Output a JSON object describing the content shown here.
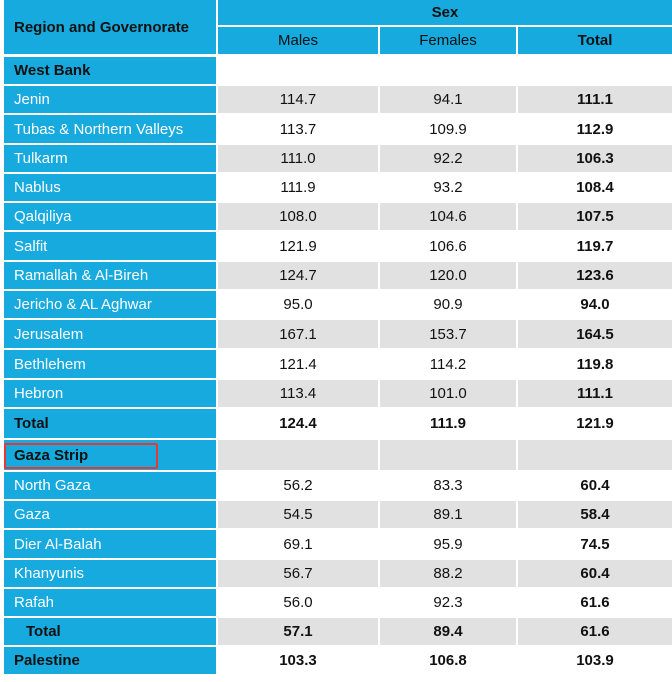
{
  "header": {
    "region_label": "Region and Governorate",
    "sex_label": "Sex",
    "males_label": "Males",
    "females_label": "Females",
    "total_label": "Total"
  },
  "rows": [
    {
      "label": "West Bank",
      "kind": "section",
      "males": "",
      "females": "",
      "total": ""
    },
    {
      "label": "Jenin",
      "kind": "data",
      "males": "114.7",
      "females": "94.1",
      "total": "111.1"
    },
    {
      "label": "Tubas & Northern Valleys",
      "kind": "data",
      "males": "113.7",
      "females": "109.9",
      "total": "112.9"
    },
    {
      "label": "Tulkarm",
      "kind": "data",
      "males": "111.0",
      "females": "92.2",
      "total": "106.3"
    },
    {
      "label": "Nablus",
      "kind": "data",
      "males": "111.9",
      "females": "93.2",
      "total": "108.4"
    },
    {
      "label": "Qalqiliya",
      "kind": "data",
      "males": "108.0",
      "females": "104.6",
      "total": "107.5"
    },
    {
      "label": "Salfit",
      "kind": "data",
      "males": "121.9",
      "females": "106.6",
      "total": "119.7"
    },
    {
      "label": "Ramallah & Al-Bireh",
      "kind": "data",
      "males": "124.7",
      "females": "120.0",
      "total": "123.6"
    },
    {
      "label": "Jericho & AL Aghwar",
      "kind": "data",
      "males": "95.0",
      "females": "90.9",
      "total": "94.0"
    },
    {
      "label": "Jerusalem",
      "kind": "data",
      "males": "167.1",
      "females": "153.7",
      "total": "164.5"
    },
    {
      "label": "Bethlehem",
      "kind": "data",
      "males": "121.4",
      "females": "114.2",
      "total": "119.8"
    },
    {
      "label": "Hebron",
      "kind": "data",
      "males": "113.4",
      "females": "101.0",
      "total": "111.1"
    },
    {
      "label": "Total",
      "kind": "total",
      "males": "124.4",
      "females": "111.9",
      "total": "121.9"
    },
    {
      "label": "Gaza Strip",
      "kind": "section-gaza",
      "males": "",
      "females": "",
      "total": ""
    },
    {
      "label": "North Gaza",
      "kind": "data",
      "males": "56.2",
      "females": "83.3",
      "total": "60.4"
    },
    {
      "label": "Gaza",
      "kind": "data",
      "males": "54.5",
      "females": "89.1",
      "total": "58.4"
    },
    {
      "label": "Dier Al-Balah",
      "kind": "data",
      "males": "69.1",
      "females": "95.9",
      "total": "74.5"
    },
    {
      "label": "Khanyunis",
      "kind": "data",
      "males": "56.7",
      "females": "88.2",
      "total": "60.4"
    },
    {
      "label": "Rafah",
      "kind": "data",
      "males": "56.0",
      "females": "92.3",
      "total": "61.6"
    },
    {
      "label": "Total",
      "kind": "total",
      "males": "57.1",
      "females": "89.4",
      "total": "61.6"
    },
    {
      "label": "Palestine",
      "kind": "grand",
      "males": "103.3",
      "females": "106.8",
      "total": "103.9"
    }
  ],
  "colors": {
    "header_blue": "#17aadf",
    "row_shade": "#e1e1e1",
    "highlight": "#e53935"
  }
}
